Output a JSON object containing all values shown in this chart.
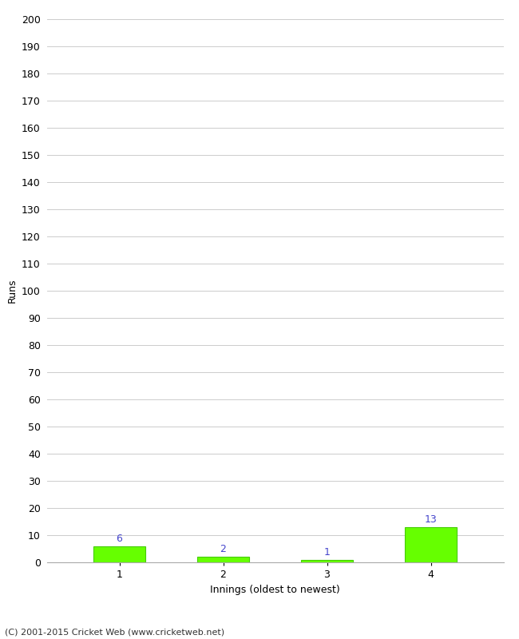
{
  "categories": [
    "1",
    "2",
    "3",
    "4"
  ],
  "values": [
    6,
    2,
    1,
    13
  ],
  "bar_color": "#66ff00",
  "bar_edge_color": "#44cc00",
  "ylabel": "Runs",
  "xlabel": "Innings (oldest to newest)",
  "ylim": [
    0,
    200
  ],
  "yticks": [
    0,
    10,
    20,
    30,
    40,
    50,
    60,
    70,
    80,
    90,
    100,
    110,
    120,
    130,
    140,
    150,
    160,
    170,
    180,
    190,
    200
  ],
  "footer": "(C) 2001-2015 Cricket Web (www.cricketweb.net)",
  "label_color": "#4444cc",
  "background_color": "#ffffff",
  "grid_color": "#cccccc",
  "bar_width": 0.5
}
